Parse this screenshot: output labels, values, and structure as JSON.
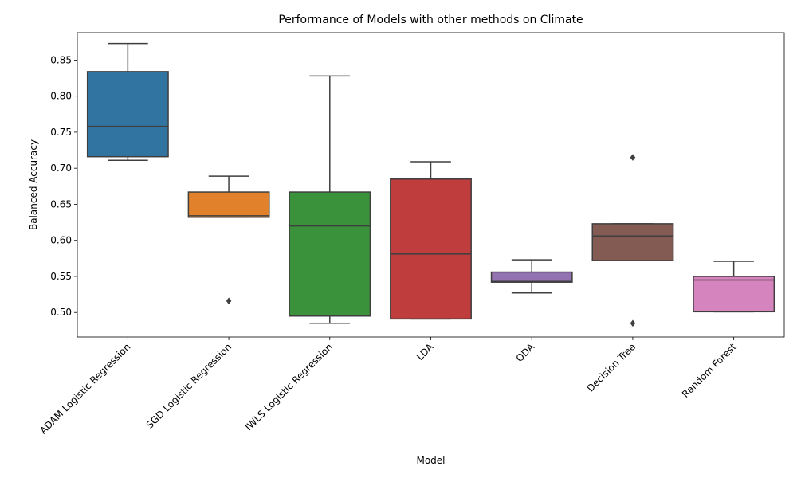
{
  "chart_data": {
    "type": "box",
    "title": "Performance of Models with other methods on Climate",
    "xlabel": "Model",
    "ylabel": "Balanced Accuracy",
    "ylim": [
      0.466,
      0.888
    ],
    "yticks": [
      "0.50",
      "0.55",
      "0.60",
      "0.65",
      "0.70",
      "0.75",
      "0.80",
      "0.85"
    ],
    "grid": false,
    "categories": [
      "ADAM Logistic Regression",
      "SGD Logistic Regression",
      "IWLS Logistic Regression",
      "LDA",
      "QDA",
      "Decision Tree",
      "Random Forest"
    ],
    "boxes": [
      {
        "whisker_low": 0.711,
        "q1": 0.716,
        "median": 0.758,
        "q3": 0.834,
        "whisker_high": 0.873,
        "outliers": [],
        "color": "#3274a1"
      },
      {
        "whisker_low": 0.632,
        "q1": 0.632,
        "median": 0.634,
        "q3": 0.667,
        "whisker_high": 0.689,
        "outliers": [
          0.516
        ],
        "color": "#e1812c"
      },
      {
        "whisker_low": 0.485,
        "q1": 0.495,
        "median": 0.62,
        "q3": 0.667,
        "whisker_high": 0.828,
        "outliers": [],
        "color": "#3a923a"
      },
      {
        "whisker_low": 0.491,
        "q1": 0.491,
        "median": 0.581,
        "q3": 0.685,
        "whisker_high": 0.709,
        "outliers": [],
        "color": "#c03d3e"
      },
      {
        "whisker_low": 0.527,
        "q1": 0.542,
        "median": 0.543,
        "q3": 0.556,
        "whisker_high": 0.573,
        "outliers": [],
        "color": "#9372b2"
      },
      {
        "whisker_low": 0.572,
        "q1": 0.572,
        "median": 0.606,
        "q3": 0.623,
        "whisker_high": 0.623,
        "outliers": [
          0.715,
          0.485
        ],
        "color": "#845b53"
      },
      {
        "whisker_low": 0.501,
        "q1": 0.501,
        "median": 0.545,
        "q3": 0.55,
        "whisker_high": 0.571,
        "outliers": [],
        "color": "#d684bd"
      }
    ]
  }
}
